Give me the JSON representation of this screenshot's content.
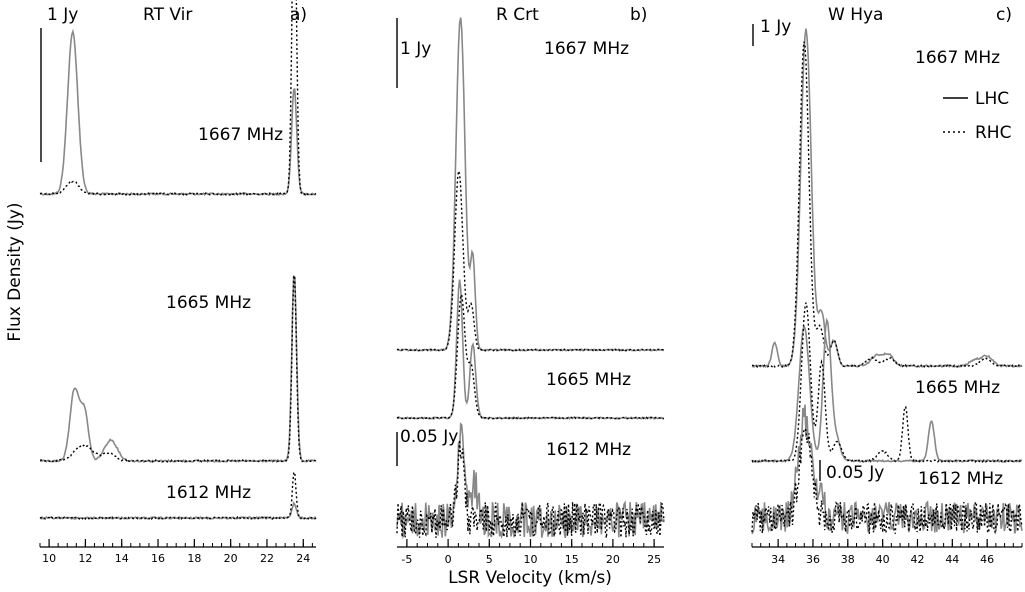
{
  "figure": {
    "ylabel": "Flux Density (Jy)",
    "xlabel": "LSR Velocity (km/s)"
  },
  "panels": [
    {
      "star": "RT Vir",
      "letter": "a)",
      "scale_bar_label": "1 Jy",
      "xlim": [
        9.5,
        24.7
      ],
      "ticks": [
        10,
        12,
        14,
        16,
        18,
        20,
        22,
        24
      ],
      "spectra": [
        {
          "label": "1667 MHz"
        },
        {
          "label": "1665 MHz"
        },
        {
          "label": "1612 MHz"
        }
      ]
    },
    {
      "star": "R Crt",
      "letter": "b)",
      "scale_bar_label": "1 Jy",
      "scale_bar_label_2": "0.05 Jy",
      "xlim": [
        -6.2,
        26.2
      ],
      "ticks": [
        -5,
        0,
        5,
        10,
        15,
        20,
        25
      ],
      "spectra": [
        {
          "label": "1667 MHz"
        },
        {
          "label": "1665 MHz"
        },
        {
          "label": "1612 MHz"
        }
      ]
    },
    {
      "star": "W Hya",
      "letter": "c)",
      "scale_bar_label": "1 Jy",
      "scale_bar_label_2": "0.05 Jy",
      "xlim": [
        32.5,
        48.0
      ],
      "ticks": [
        34,
        36,
        38,
        40,
        42,
        44,
        46
      ],
      "spectra": [
        {
          "label": "1667 MHz"
        },
        {
          "label": "1665 MHz"
        },
        {
          "label": "1612 MHz"
        }
      ],
      "legend": {
        "lhc": "LHC",
        "rhc": "RHC"
      }
    }
  ],
  "chart_data": [
    {
      "type": "line",
      "title": "RT Vir",
      "xlabel": "LSR Velocity (km/s)",
      "ylabel": "Flux Density (Jy)",
      "xlim": [
        9.5,
        24.7
      ],
      "scale_bar_jy": 1,
      "series": [
        {
          "name": "1667 MHz LHC",
          "peaks": [
            {
              "v": 11.3,
              "jy": 1.0,
              "w": 0.28
            },
            {
              "v": 23.5,
              "jy": 0.66,
              "w": 0.14
            }
          ]
        },
        {
          "name": "1667 MHz RHC",
          "peaks": [
            {
              "v": 11.3,
              "jy": 0.08,
              "w": 0.35
            },
            {
              "v": 23.5,
              "jy": 1.95,
              "w": 0.12
            }
          ]
        },
        {
          "name": "1665 MHz LHC",
          "peaks": [
            {
              "v": 11.4,
              "jy": 0.44,
              "w": 0.25
            },
            {
              "v": 11.95,
              "jy": 0.3,
              "w": 0.22
            },
            {
              "v": 13.4,
              "jy": 0.13,
              "w": 0.35
            },
            {
              "v": 23.5,
              "jy": 1.17,
              "w": 0.13
            }
          ]
        },
        {
          "name": "1665 MHz RHC",
          "peaks": [
            {
              "v": 11.9,
              "jy": 0.1,
              "w": 0.5
            },
            {
              "v": 13.3,
              "jy": 0.05,
              "w": 0.35
            },
            {
              "v": 23.5,
              "jy": 1.17,
              "w": 0.12
            }
          ]
        },
        {
          "name": "1612 MHz LHC",
          "peaks": [
            {
              "v": 23.5,
              "jy": 0.09,
              "w": 0.12
            }
          ]
        },
        {
          "name": "1612 MHz RHC",
          "peaks": [
            {
              "v": 23.5,
              "jy": 0.29,
              "w": 0.1
            }
          ]
        }
      ]
    },
    {
      "type": "line",
      "title": "R Crt",
      "xlabel": "LSR Velocity (km/s)",
      "ylabel": "Flux Density (Jy)",
      "xlim": [
        -6.2,
        26.2
      ],
      "scale_bar_jy": 1,
      "scale_bar_jy_1612": 0.05,
      "series": [
        {
          "name": "1667 MHz LHC",
          "peaks": [
            {
              "v": 1.5,
              "jy": 2.6,
              "w": 0.55
            },
            {
              "v": 3.0,
              "jy": 0.7,
              "w": 0.3
            }
          ]
        },
        {
          "name": "1667 MHz RHC",
          "peaks": [
            {
              "v": 1.3,
              "jy": 1.4,
              "w": 0.5
            },
            {
              "v": 2.8,
              "jy": 0.35,
              "w": 0.35
            }
          ]
        },
        {
          "name": "1665 MHz LHC",
          "peaks": [
            {
              "v": 1.4,
              "jy": 1.08,
              "w": 0.35
            },
            {
              "v": 3.0,
              "jy": 0.58,
              "w": 0.35
            }
          ]
        },
        {
          "name": "1665 MHz RHC",
          "peaks": [
            {
              "v": 1.6,
              "jy": 0.96,
              "w": 0.45
            },
            {
              "v": 2.8,
              "jy": 0.4,
              "w": 0.4
            }
          ]
        },
        {
          "name": "1612 MHz LHC",
          "peaks": [
            {
              "v": 1.6,
              "jy": 0.065,
              "w": 0.4
            },
            {
              "v": 3.2,
              "jy": 0.028,
              "w": 0.35
            }
          ]
        },
        {
          "name": "1612 MHz RHC",
          "peaks": [
            {
              "v": 1.5,
              "jy": 0.05,
              "w": 0.4
            }
          ]
        }
      ]
    },
    {
      "type": "line",
      "title": "W Hya",
      "xlabel": "LSR Velocity (km/s)",
      "ylabel": "Flux Density (Jy)",
      "xlim": [
        32.5,
        48.0
      ],
      "scale_bar_jy": 1,
      "scale_bar_jy_1612": 0.05,
      "series": [
        {
          "name": "1667 MHz LHC",
          "peaks": [
            {
              "v": 33.8,
              "jy": 0.12,
              "w": 0.15
            },
            {
              "v": 35.6,
              "jy": 1.7,
              "w": 0.3
            },
            {
              "v": 36.5,
              "jy": 0.26,
              "w": 0.2
            },
            {
              "v": 37.2,
              "jy": 0.13,
              "w": 0.2
            },
            {
              "v": 39.6,
              "jy": 0.05,
              "w": 0.3
            },
            {
              "v": 40.3,
              "jy": 0.06,
              "w": 0.3
            },
            {
              "v": 45.3,
              "jy": 0.03,
              "w": 0.3
            },
            {
              "v": 46.0,
              "jy": 0.05,
              "w": 0.3
            }
          ]
        },
        {
          "name": "1667 MHz RHC",
          "peaks": [
            {
              "v": 35.5,
              "jy": 1.64,
              "w": 0.27
            },
            {
              "v": 36.4,
              "jy": 0.2,
              "w": 0.22
            },
            {
              "v": 37.2,
              "jy": 0.13,
              "w": 0.2
            },
            {
              "v": 39.4,
              "jy": 0.04,
              "w": 0.3
            },
            {
              "v": 40.4,
              "jy": 0.04,
              "w": 0.3
            },
            {
              "v": 45.9,
              "jy": 0.04,
              "w": 0.3
            }
          ]
        },
        {
          "name": "1665 MHz LHC",
          "peaks": [
            {
              "v": 35.5,
              "jy": 0.68,
              "w": 0.3
            },
            {
              "v": 36.8,
              "jy": 0.7,
              "w": 0.22
            },
            {
              "v": 37.3,
              "jy": 0.12,
              "w": 0.25
            },
            {
              "v": 42.8,
              "jy": 0.2,
              "w": 0.17
            }
          ]
        },
        {
          "name": "1665 MHz RHC",
          "peaks": [
            {
              "v": 35.6,
              "jy": 0.8,
              "w": 0.25
            },
            {
              "v": 36.5,
              "jy": 0.5,
              "w": 0.2
            },
            {
              "v": 37.4,
              "jy": 0.1,
              "w": 0.25
            },
            {
              "v": 41.3,
              "jy": 0.28,
              "w": 0.15
            },
            {
              "v": 40.0,
              "jy": 0.05,
              "w": 0.3
            }
          ]
        },
        {
          "name": "1612 MHz LHC",
          "peaks": [
            {
              "v": 35.5,
              "jy": 0.082,
              "w": 0.35
            },
            {
              "v": 36.3,
              "jy": 0.02,
              "w": 0.3
            }
          ]
        },
        {
          "name": "1612 MHz RHC",
          "peaks": [
            {
              "v": 35.6,
              "jy": 0.074,
              "w": 0.35
            }
          ]
        }
      ]
    }
  ]
}
